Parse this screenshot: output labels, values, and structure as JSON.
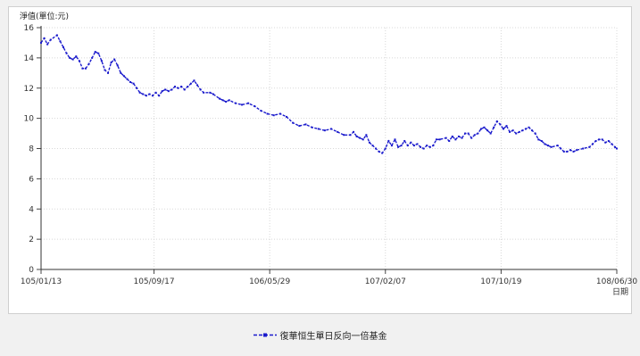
{
  "chart_data": {
    "type": "line",
    "ylabel": "淨值(單位:元)",
    "xlabel": "日期",
    "ylim": [
      0,
      16
    ],
    "yticks": [
      0,
      2,
      4,
      6,
      8,
      10,
      12,
      14,
      16
    ],
    "xtick_labels": [
      "105/01/13",
      "105/09/17",
      "106/05/29",
      "107/02/07",
      "107/10/19",
      "108/06/30"
    ],
    "grid": true,
    "legend_position": "bottom-center",
    "series": [
      {
        "name": "復華恒生單日反向一倍基金",
        "color": "#1a1acc",
        "points": [
          [
            "105/01/13",
            15.0
          ],
          [
            "105/01/20",
            15.3
          ],
          [
            "105/01/27",
            14.9
          ],
          [
            "105/02/03",
            15.2
          ],
          [
            "105/02/17",
            15.5
          ],
          [
            "105/02/24",
            15.1
          ],
          [
            "105/03/02",
            14.7
          ],
          [
            "105/03/09",
            14.3
          ],
          [
            "105/03/16",
            14.0
          ],
          [
            "105/03/23",
            13.9
          ],
          [
            "105/03/30",
            14.1
          ],
          [
            "105/04/06",
            13.8
          ],
          [
            "105/04/13",
            13.3
          ],
          [
            "105/04/20",
            13.3
          ],
          [
            "105/04/27",
            13.6
          ],
          [
            "105/05/04",
            14.0
          ],
          [
            "105/05/11",
            14.4
          ],
          [
            "105/05/18",
            14.3
          ],
          [
            "105/05/25",
            13.8
          ],
          [
            "105/06/01",
            13.2
          ],
          [
            "105/06/08",
            13.0
          ],
          [
            "105/06/15",
            13.7
          ],
          [
            "105/06/22",
            13.9
          ],
          [
            "105/06/29",
            13.5
          ],
          [
            "105/07/06",
            13.0
          ],
          [
            "105/07/13",
            12.8
          ],
          [
            "105/07/20",
            12.6
          ],
          [
            "105/07/27",
            12.4
          ],
          [
            "105/08/03",
            12.3
          ],
          [
            "105/08/10",
            12.0
          ],
          [
            "105/08/17",
            11.7
          ],
          [
            "105/08/24",
            11.6
          ],
          [
            "105/08/31",
            11.5
          ],
          [
            "105/09/07",
            11.6
          ],
          [
            "105/09/14",
            11.5
          ],
          [
            "105/09/21",
            11.7
          ],
          [
            "105/09/28",
            11.5
          ],
          [
            "105/10/05",
            11.8
          ],
          [
            "105/10/12",
            11.9
          ],
          [
            "105/10/19",
            11.8
          ],
          [
            "105/10/26",
            11.9
          ],
          [
            "105/11/02",
            12.1
          ],
          [
            "105/11/09",
            12.0
          ],
          [
            "105/11/16",
            12.1
          ],
          [
            "105/11/23",
            11.9
          ],
          [
            "105/11/30",
            12.1
          ],
          [
            "105/12/07",
            12.3
          ],
          [
            "105/12/14",
            12.5
          ],
          [
            "105/12/21",
            12.2
          ],
          [
            "105/12/28",
            11.9
          ],
          [
            "106/01/04",
            11.7
          ],
          [
            "106/01/18",
            11.7
          ],
          [
            "106/01/25",
            11.6
          ],
          [
            "106/02/08",
            11.3
          ],
          [
            "106/02/15",
            11.2
          ],
          [
            "106/02/22",
            11.1
          ],
          [
            "106/03/01",
            11.2
          ],
          [
            "106/03/15",
            11.0
          ],
          [
            "106/03/29",
            10.9
          ],
          [
            "106/04/12",
            11.0
          ],
          [
            "106/04/26",
            10.8
          ],
          [
            "106/05/10",
            10.5
          ],
          [
            "106/05/24",
            10.3
          ],
          [
            "106/06/07",
            10.2
          ],
          [
            "106/06/21",
            10.3
          ],
          [
            "106/07/05",
            10.1
          ],
          [
            "106/07/19",
            9.7
          ],
          [
            "106/08/02",
            9.5
          ],
          [
            "106/08/16",
            9.6
          ],
          [
            "106/08/30",
            9.4
          ],
          [
            "106/09/13",
            9.3
          ],
          [
            "106/09/27",
            9.2
          ],
          [
            "106/10/11",
            9.3
          ],
          [
            "106/10/25",
            9.1
          ],
          [
            "106/11/08",
            8.9
          ],
          [
            "106/11/22",
            8.9
          ],
          [
            "106/11/29",
            9.1
          ],
          [
            "106/12/06",
            8.8
          ],
          [
            "106/12/13",
            8.7
          ],
          [
            "106/12/20",
            8.6
          ],
          [
            "106/12/27",
            8.9
          ],
          [
            "107/01/03",
            8.4
          ],
          [
            "107/01/10",
            8.2
          ],
          [
            "107/01/17",
            8.0
          ],
          [
            "107/01/24",
            7.8
          ],
          [
            "107/01/31",
            7.7
          ],
          [
            "107/02/07",
            8.0
          ],
          [
            "107/02/14",
            8.5
          ],
          [
            "107/02/21",
            8.2
          ],
          [
            "107/02/28",
            8.6
          ],
          [
            "107/03/07",
            8.1
          ],
          [
            "107/03/14",
            8.2
          ],
          [
            "107/03/21",
            8.5
          ],
          [
            "107/03/28",
            8.2
          ],
          [
            "107/04/04",
            8.4
          ],
          [
            "107/04/11",
            8.2
          ],
          [
            "107/04/18",
            8.3
          ],
          [
            "107/04/25",
            8.1
          ],
          [
            "107/05/02",
            8.0
          ],
          [
            "107/05/09",
            8.2
          ],
          [
            "107/05/16",
            8.1
          ],
          [
            "107/05/23",
            8.2
          ],
          [
            "107/05/30",
            8.6
          ],
          [
            "107/06/06",
            8.6
          ],
          [
            "107/06/20",
            8.7
          ],
          [
            "107/06/27",
            8.5
          ],
          [
            "107/07/04",
            8.8
          ],
          [
            "107/07/11",
            8.6
          ],
          [
            "107/07/18",
            8.8
          ],
          [
            "107/07/25",
            8.7
          ],
          [
            "107/08/01",
            9.0
          ],
          [
            "107/08/08",
            9.0
          ],
          [
            "107/08/15",
            8.7
          ],
          [
            "107/08/22",
            8.9
          ],
          [
            "107/08/29",
            9.0
          ],
          [
            "107/09/05",
            9.3
          ],
          [
            "107/09/12",
            9.4
          ],
          [
            "107/09/19",
            9.2
          ],
          [
            "107/09/26",
            9.0
          ],
          [
            "107/10/03",
            9.4
          ],
          [
            "107/10/10",
            9.8
          ],
          [
            "107/10/17",
            9.6
          ],
          [
            "107/10/24",
            9.3
          ],
          [
            "107/10/31",
            9.5
          ],
          [
            "107/11/07",
            9.1
          ],
          [
            "107/11/14",
            9.2
          ],
          [
            "107/11/21",
            9.0
          ],
          [
            "107/11/28",
            9.1
          ],
          [
            "107/12/05",
            9.2
          ],
          [
            "107/12/12",
            9.3
          ],
          [
            "107/12/19",
            9.4
          ],
          [
            "107/12/26",
            9.2
          ],
          [
            "108/01/02",
            9.0
          ],
          [
            "108/01/09",
            8.6
          ],
          [
            "108/01/16",
            8.5
          ],
          [
            "108/01/23",
            8.3
          ],
          [
            "108/01/30",
            8.2
          ],
          [
            "108/02/06",
            8.1
          ],
          [
            "108/02/20",
            8.2
          ],
          [
            "108/02/27",
            8.0
          ],
          [
            "108/03/06",
            7.8
          ],
          [
            "108/03/13",
            7.8
          ],
          [
            "108/03/20",
            7.9
          ],
          [
            "108/03/27",
            7.8
          ],
          [
            "108/04/03",
            7.9
          ],
          [
            "108/04/17",
            8.0
          ],
          [
            "108/05/01",
            8.1
          ],
          [
            "108/05/08",
            8.3
          ],
          [
            "108/05/15",
            8.5
          ],
          [
            "108/05/22",
            8.6
          ],
          [
            "108/05/29",
            8.6
          ],
          [
            "108/06/05",
            8.4
          ],
          [
            "108/06/12",
            8.5
          ],
          [
            "108/06/19",
            8.3
          ],
          [
            "108/06/26",
            8.1
          ],
          [
            "108/06/30",
            8.0
          ]
        ]
      }
    ]
  }
}
